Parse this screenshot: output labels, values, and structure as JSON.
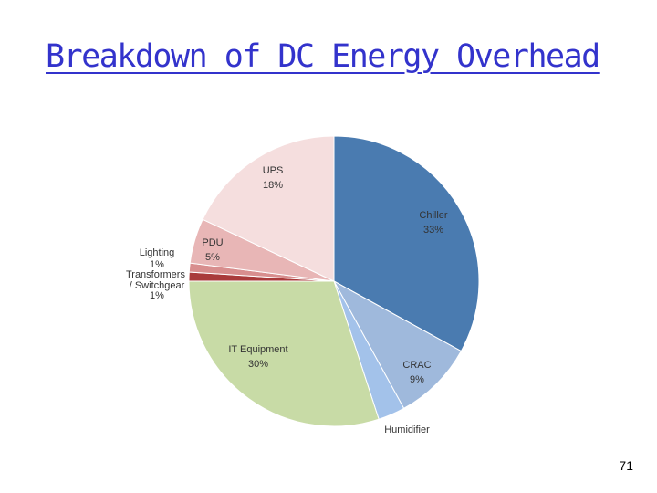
{
  "slide": {
    "title": "Breakdown of DC Energy Overhead",
    "page_number": "71"
  },
  "chart_data": {
    "type": "pie",
    "title": "",
    "slices": [
      {
        "label": "Chiller",
        "pct_label": "33%",
        "value": 33,
        "color": "#4a7bb0"
      },
      {
        "label": "CRAC",
        "pct_label": "9%",
        "value": 9,
        "color": "#9fb9dc"
      },
      {
        "label": "Humidifier",
        "pct_label": "",
        "value": 3,
        "color": "#a3c2ea"
      },
      {
        "label": "IT Equipment",
        "pct_label": "30%",
        "value": 30,
        "color": "#c8dba6"
      },
      {
        "label": "Transformers / Switchgear",
        "pct_label": "1%",
        "value": 1,
        "color": "#a93a3a"
      },
      {
        "label": "Lighting",
        "pct_label": "1%",
        "value": 1,
        "color": "#d88e8e"
      },
      {
        "label": "PDU",
        "pct_label": "5%",
        "value": 5,
        "color": "#e8b6b6"
      },
      {
        "label": "UPS",
        "pct_label": "18%",
        "value": 18,
        "color": "#f5dede"
      }
    ]
  }
}
